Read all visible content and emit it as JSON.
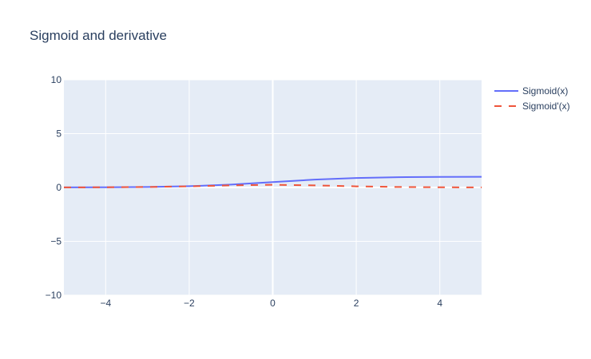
{
  "chart_data": {
    "type": "line",
    "title": "Sigmoid and derivative",
    "xlabel": "",
    "ylabel": "",
    "xlim": [
      -5,
      5
    ],
    "ylim": [
      -10,
      10
    ],
    "x_ticks": [
      -4,
      -2,
      0,
      2,
      4
    ],
    "y_ticks": [
      -10,
      -5,
      0,
      5,
      10
    ],
    "x_tick_labels": [
      "−4",
      "−2",
      "0",
      "2",
      "4"
    ],
    "y_tick_labels": [
      "−10",
      "−5",
      "0",
      "5",
      "10"
    ],
    "grid": true,
    "legend_position": "top-right",
    "series": [
      {
        "name": "Sigmoid(x)",
        "color": "#636efa",
        "dash": "solid",
        "x": [
          -5,
          -4,
          -3,
          -2,
          -1,
          0,
          1,
          2,
          3,
          4,
          5
        ],
        "y": [
          0.0067,
          0.018,
          0.047,
          0.119,
          0.269,
          0.5,
          0.731,
          0.881,
          0.953,
          0.982,
          0.993
        ]
      },
      {
        "name": "Sigmoid'(x)",
        "color": "#ef553b",
        "dash": "dash",
        "x": [
          -5,
          -4,
          -3,
          -2,
          -1,
          0,
          1,
          2,
          3,
          4,
          5
        ],
        "y": [
          0.0066,
          0.018,
          0.045,
          0.105,
          0.197,
          0.25,
          0.197,
          0.105,
          0.045,
          0.018,
          0.0066
        ]
      }
    ]
  },
  "colors": {
    "plot_background": "#e5ecf6",
    "grid": "#ffffff",
    "text": "#2a3f5f"
  }
}
